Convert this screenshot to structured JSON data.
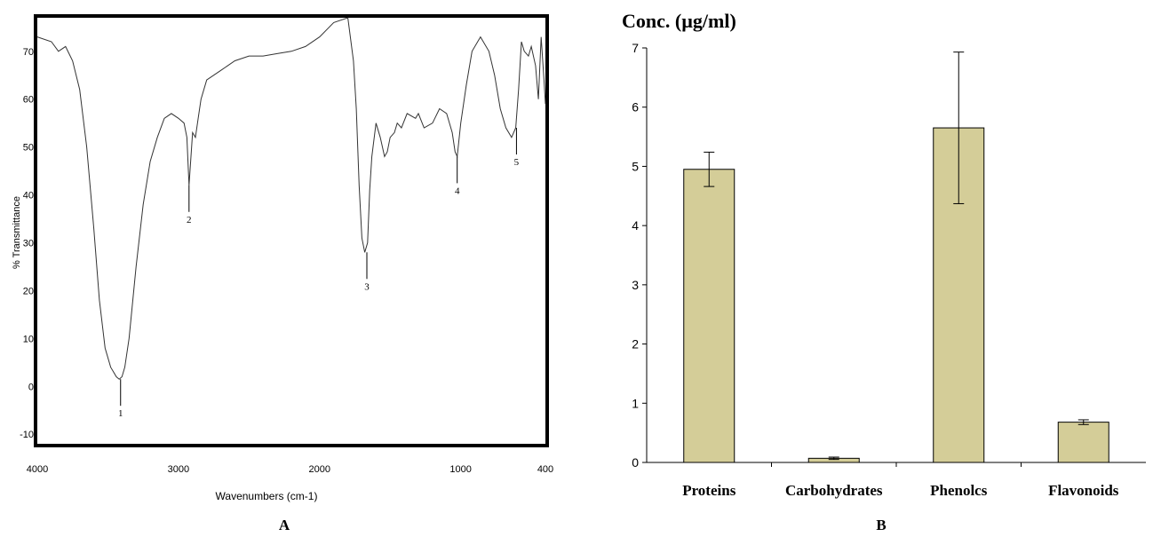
{
  "panels": {
    "a_label": "A",
    "b_label": "B"
  },
  "chart_data": [
    {
      "type": "line",
      "title": "",
      "xlabel": "Wavenumbers (cm-1)",
      "ylabel": "% Transmittance",
      "xlim": [
        4000,
        400
      ],
      "ylim": [
        -12,
        77
      ],
      "x_ticks": [
        "4000",
        "3000",
        "2000",
        "1000",
        "400"
      ],
      "y_ticks": [
        "70",
        "60",
        "50",
        "40",
        "30",
        "20",
        "10",
        "0",
        "-10"
      ],
      "series": [
        {
          "x": [
            4000,
            3900,
            3850,
            3800,
            3750,
            3700,
            3650,
            3600,
            3560,
            3520,
            3480,
            3440,
            3420,
            3400,
            3380,
            3350,
            3300,
            3250,
            3200,
            3150,
            3100,
            3050,
            3000,
            2960,
            2940,
            2925,
            2900,
            2880,
            2860,
            2840,
            2800,
            2700,
            2600,
            2500,
            2400,
            2300,
            2200,
            2100,
            2000,
            1900,
            1800,
            1760,
            1740,
            1720,
            1700,
            1680,
            1660,
            1645,
            1630,
            1600,
            1570,
            1540,
            1520,
            1500,
            1470,
            1450,
            1420,
            1380,
            1320,
            1300,
            1260,
            1200,
            1150,
            1100,
            1060,
            1040,
            1025,
            1000,
            960,
            920,
            860,
            800,
            760,
            720,
            680,
            640,
            610,
            590,
            570,
            550,
            520,
            500,
            470,
            450,
            430,
            410,
            400
          ],
          "y": [
            73,
            72,
            70,
            71,
            68,
            62,
            50,
            33,
            18,
            8,
            4,
            2,
            1.5,
            2,
            4,
            10,
            25,
            38,
            47,
            52,
            56,
            57,
            56,
            55,
            52,
            42,
            53,
            52,
            56,
            60,
            64,
            66,
            68,
            69,
            69,
            69.5,
            70,
            71,
            73,
            76,
            77,
            68,
            58,
            42,
            31,
            28,
            30,
            41,
            48,
            55,
            52,
            48,
            49,
            52,
            53,
            55,
            54,
            57,
            56,
            57,
            54,
            55,
            58,
            57,
            53,
            49,
            48,
            55,
            63,
            70,
            73,
            70,
            65,
            58,
            54,
            52,
            54,
            62,
            72,
            70,
            69,
            71,
            67,
            60,
            73,
            64,
            59
          ]
        }
      ],
      "annotations": [
        {
          "label": "1",
          "x": 3410,
          "y": 1.5
        },
        {
          "label": "2",
          "x": 2925,
          "y": 42
        },
        {
          "label": "3",
          "x": 1665,
          "y": 28
        },
        {
          "label": "4",
          "x": 1025,
          "y": 48
        },
        {
          "label": "5",
          "x": 605,
          "y": 54
        }
      ]
    },
    {
      "type": "bar",
      "title": "Conc. (µg/ml)",
      "xlabel": "",
      "ylabel": "",
      "categories": [
        "Proteins",
        "Carbohydrates",
        "Phenolcs",
        "Flavonoids"
      ],
      "values": [
        4.95,
        0.07,
        5.65,
        0.68
      ],
      "errors": [
        0.29,
        0.02,
        1.28,
        0.04
      ],
      "ylim": [
        0,
        7
      ],
      "y_ticks": [
        "0",
        "1",
        "2",
        "3",
        "4",
        "5",
        "6",
        "7"
      ],
      "bar_color": "#d4cd98",
      "bar_stroke": "#000000",
      "grid": false
    }
  ]
}
